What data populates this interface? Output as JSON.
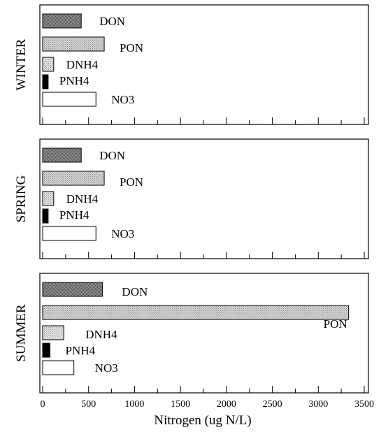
{
  "chart_data": {
    "type": "bar",
    "orientation": "horizontal",
    "xlabel": "Nitrogen (ug N/L)",
    "xlim": [
      0,
      3500
    ],
    "x_ticks": [
      "0",
      "500",
      "1000",
      "1500",
      "2000",
      "2500",
      "3000",
      "3500"
    ],
    "grid": false,
    "categories": [
      "DON",
      "PON",
      "DNH4",
      "PNH4",
      "NO3"
    ],
    "panels": [
      {
        "label": "WINTER",
        "values": [
          420,
          670,
          120,
          60,
          580
        ],
        "bar_labels": [
          "DON",
          "PON",
          "DNH4",
          "PNH4",
          "NO3"
        ]
      },
      {
        "label": "SPRING",
        "values": [
          420,
          670,
          120,
          60,
          580
        ],
        "bar_labels": [
          "DON",
          "PON",
          "DNH4",
          "PNH4",
          "NO3"
        ]
      },
      {
        "label": "SUMMER",
        "values": [
          650,
          3330,
          230,
          80,
          340
        ],
        "bar_labels": [
          "DON",
          "PON",
          "DNH4",
          "PNH4",
          "NO3"
        ]
      }
    ]
  },
  "style": {
    "fills": {
      "DON": "#9a9a9a",
      "PON": "#d4d4d4",
      "DNH4": "#e2e2e2",
      "PNH4": "#000000",
      "NO3": "#ffffff"
    },
    "stroke": "#000000"
  }
}
